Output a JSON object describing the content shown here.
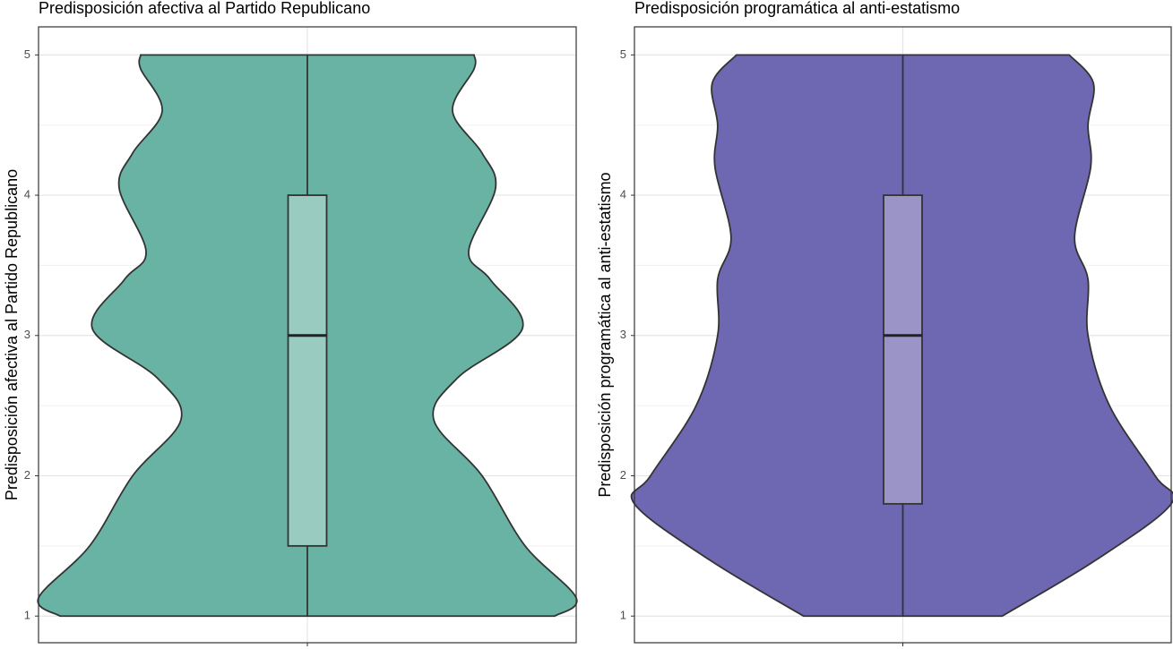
{
  "chart_data": [
    {
      "type": "violin",
      "title": "Predisposición afectiva al Partido Republicano",
      "y_label": "Predisposición afectiva al Partido Republicano",
      "categories": [
        null
      ],
      "color": "#69b3a4",
      "box_color": "#99cbc0",
      "violin": {
        "y": [
          1,
          1.13,
          1.5,
          2,
          2.4,
          2.7,
          3.05,
          3.4,
          3.6,
          4.05,
          4.3,
          4.6,
          4.9,
          5
        ],
        "width": [
          0.92,
          1,
          0.81,
          0.65,
          0.47,
          0.56,
          0.8,
          0.68,
          0.6,
          0.7,
          0.65,
          0.54,
          0.62,
          0.62
        ]
      },
      "box": {
        "whisker_low": 1,
        "q1": 1.5,
        "median": 3,
        "q3": 4,
        "whisker_high": 5
      },
      "ylim": [
        0.81,
        5.2
      ],
      "yticks": [
        1,
        2,
        3,
        4,
        5
      ],
      "minor_yticks": [
        1.5,
        2.5,
        3.5,
        4.5
      ],
      "grid": true
    },
    {
      "type": "violin",
      "title": "Predisposición programática al anti-estatismo",
      "y_label": "Predisposición programática al anti-estatismo",
      "categories": [
        null
      ],
      "color": "#6e67b2",
      "box_color": "#9b95c7",
      "violin": {
        "y": [
          1,
          1.4,
          1.8,
          2,
          2.5,
          3,
          3.4,
          3.7,
          4.2,
          4.5,
          4.8,
          5
        ],
        "width": [
          0.37,
          0.72,
          1,
          0.94,
          0.77,
          0.69,
          0.69,
          0.64,
          0.7,
          0.69,
          0.71,
          0.62
        ]
      },
      "box": {
        "whisker_low": 1,
        "q1": 1.8,
        "median": 3,
        "q3": 4,
        "whisker_high": 5
      },
      "ylim": [
        0.81,
        5.2
      ],
      "yticks": [
        1,
        2,
        3,
        4,
        5
      ],
      "minor_yticks": [
        1.5,
        2.5,
        3.5,
        4.5
      ],
      "grid": true
    }
  ]
}
